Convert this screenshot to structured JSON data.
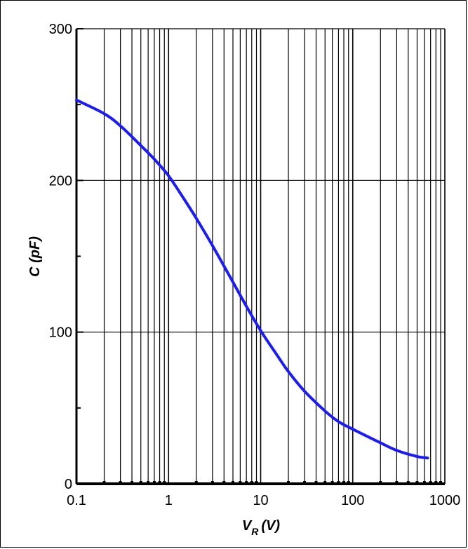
{
  "chart_data": {
    "type": "line",
    "title": "",
    "xlabel": "V",
    "xlabel_subscript": "R",
    "xlabel_unit": "(V)",
    "ylabel": "C (pF)",
    "x_scale": "log",
    "xlim": [
      0.1,
      1000
    ],
    "ylim": [
      0,
      300
    ],
    "x_ticks": [
      0.1,
      1,
      10,
      100,
      1000
    ],
    "x_tick_labels": [
      "0.1",
      "1",
      "10",
      "100",
      "1000"
    ],
    "y_ticks": [
      0,
      100,
      200,
      300
    ],
    "y_tick_labels": [
      "0",
      "100",
      "200",
      "300"
    ],
    "grid": true,
    "line_color": "#1a1aff",
    "series": [
      {
        "x": [
          0.1,
          0.2,
          0.3,
          0.5,
          0.7,
          1,
          1.5,
          2,
          3,
          5,
          7,
          10,
          15,
          20,
          30,
          50,
          70,
          100,
          200,
          300,
          500,
          650
        ],
        "values": [
          253,
          244,
          236,
          223,
          214,
          203,
          187,
          175,
          157,
          133,
          117,
          101,
          85,
          74,
          61,
          48,
          41,
          36,
          27,
          22,
          18,
          17
        ]
      }
    ]
  }
}
